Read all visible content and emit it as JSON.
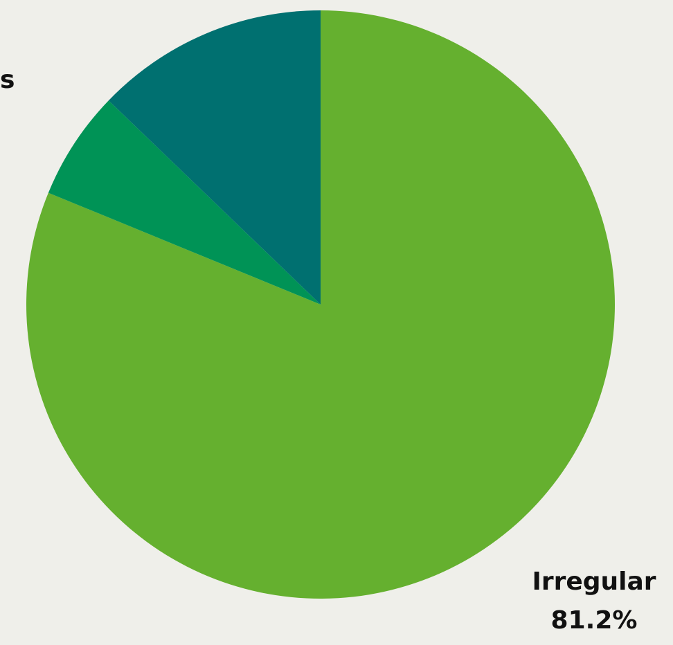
{
  "chart_data": {
    "type": "pie",
    "slices": [
      {
        "label": "Irregular",
        "value": 81.2,
        "value_label": "81.2%",
        "color": "#65b02f"
      },
      {
        "label": "",
        "value": 6.0,
        "value_label": "",
        "color": "#009356"
      },
      {
        "label": "",
        "value": 12.8,
        "value_label": "",
        "color": "#007070"
      }
    ],
    "visible_label_fragment": "s",
    "start_angle_deg": 0,
    "direction": "clockwise"
  }
}
